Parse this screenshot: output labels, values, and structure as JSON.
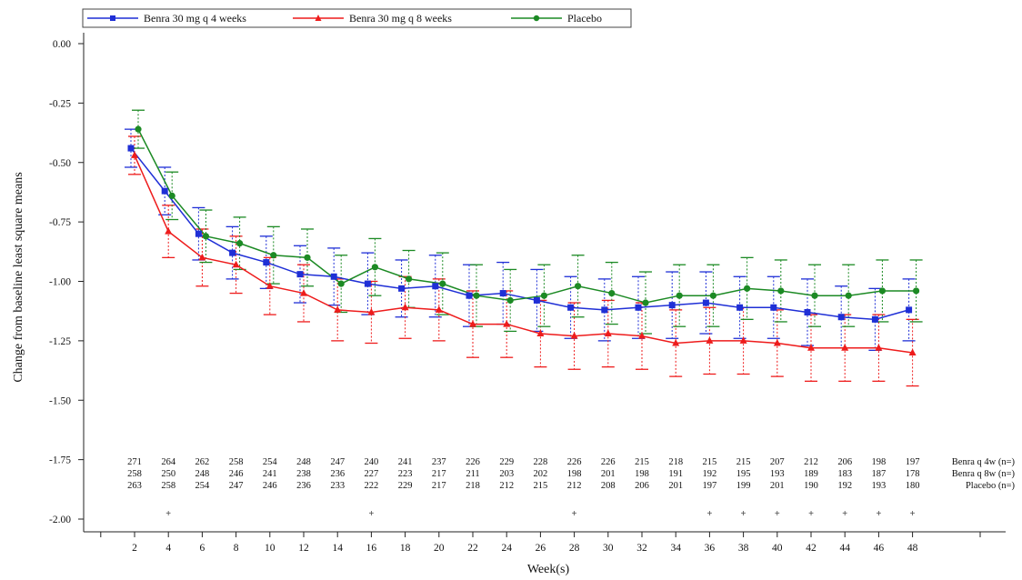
{
  "chart_data": {
    "type": "line",
    "xlabel": "Week(s)",
    "ylabel": "Change from baseline least square means",
    "ylim": [
      -2.0,
      0.0
    ],
    "yticks": [
      "0.00",
      "-0.25",
      "-0.50",
      "-0.75",
      "-1.00",
      "-1.25",
      "-1.50",
      "-1.75",
      "-2.00"
    ],
    "ytick_values": [
      0.0,
      -0.25,
      -0.5,
      -0.75,
      -1.0,
      -1.25,
      -1.5,
      -1.75,
      -2.0
    ],
    "x": [
      2,
      4,
      6,
      8,
      10,
      12,
      14,
      16,
      18,
      20,
      22,
      24,
      26,
      28,
      30,
      32,
      34,
      36,
      38,
      40,
      42,
      44,
      46,
      48
    ],
    "xtick_labels": [
      "2",
      "4",
      "6",
      "8",
      "10",
      "12",
      "14",
      "16",
      "18",
      "20",
      "22",
      "24",
      "26",
      "28",
      "30",
      "32",
      "34",
      "36",
      "38",
      "40",
      "42",
      "44",
      "46",
      "48"
    ],
    "legend_position": "top-left",
    "series": [
      {
        "name": "Benra 30 mg q 4 weeks",
        "color": "#1f2fd6",
        "marker": "square",
        "values": [
          -0.44,
          -0.62,
          -0.8,
          -0.88,
          -0.92,
          -0.97,
          -0.98,
          -1.01,
          -1.03,
          -1.02,
          -1.06,
          -1.05,
          -1.08,
          -1.11,
          -1.12,
          -1.11,
          -1.1,
          -1.09,
          -1.11,
          -1.11,
          -1.13,
          -1.15,
          -1.16,
          -1.12
        ],
        "upper": [
          -0.36,
          -0.52,
          -0.69,
          -0.77,
          -0.81,
          -0.85,
          -0.86,
          -0.88,
          -0.91,
          -0.89,
          -0.93,
          -0.92,
          -0.95,
          -0.98,
          -0.99,
          -0.98,
          -0.96,
          -0.96,
          -0.98,
          -0.98,
          -0.99,
          -1.02,
          -1.03,
          -0.99
        ],
        "lower": [
          -0.52,
          -0.72,
          -0.91,
          -0.99,
          -1.03,
          -1.09,
          -1.1,
          -1.14,
          -1.15,
          -1.15,
          -1.19,
          -1.18,
          -1.21,
          -1.24,
          -1.25,
          -1.24,
          -1.24,
          -1.22,
          -1.24,
          -1.24,
          -1.27,
          -1.28,
          -1.29,
          -1.25
        ]
      },
      {
        "name": "Benra 30 mg q 8 weeks",
        "color": "#ee1c1c",
        "marker": "triangle",
        "values": [
          -0.47,
          -0.79,
          -0.9,
          -0.93,
          -1.02,
          -1.05,
          -1.12,
          -1.13,
          -1.11,
          -1.12,
          -1.18,
          -1.18,
          -1.22,
          -1.23,
          -1.22,
          -1.23,
          -1.26,
          -1.25,
          -1.25,
          -1.26,
          -1.28,
          -1.28,
          -1.28,
          -1.3
        ],
        "upper": [
          -0.39,
          -0.68,
          -0.78,
          -0.81,
          -0.9,
          -0.93,
          -0.99,
          -1.0,
          -0.98,
          -0.99,
          -1.04,
          -1.04,
          -1.08,
          -1.09,
          -1.08,
          -1.09,
          -1.12,
          -1.11,
          -1.11,
          -1.12,
          -1.14,
          -1.14,
          -1.14,
          -1.16
        ],
        "lower": [
          -0.55,
          -0.9,
          -1.02,
          -1.05,
          -1.14,
          -1.17,
          -1.25,
          -1.26,
          -1.24,
          -1.25,
          -1.32,
          -1.32,
          -1.36,
          -1.37,
          -1.36,
          -1.37,
          -1.4,
          -1.39,
          -1.39,
          -1.4,
          -1.42,
          -1.42,
          -1.42,
          -1.44
        ]
      },
      {
        "name": "Placebo",
        "color": "#1c8a24",
        "marker": "circle",
        "values": [
          -0.36,
          -0.64,
          -0.81,
          -0.84,
          -0.89,
          -0.9,
          -1.01,
          -0.94,
          -0.99,
          -1.01,
          -1.06,
          -1.08,
          -1.06,
          -1.02,
          -1.05,
          -1.09,
          -1.06,
          -1.06,
          -1.03,
          -1.04,
          -1.06,
          -1.06,
          -1.04,
          -1.04
        ],
        "upper": [
          -0.28,
          -0.54,
          -0.7,
          -0.73,
          -0.77,
          -0.78,
          -0.89,
          -0.82,
          -0.87,
          -0.88,
          -0.93,
          -0.95,
          -0.93,
          -0.89,
          -0.92,
          -0.96,
          -0.93,
          -0.93,
          -0.9,
          -0.91,
          -0.93,
          -0.93,
          -0.91,
          -0.91
        ],
        "lower": [
          -0.44,
          -0.74,
          -0.92,
          -0.95,
          -1.01,
          -1.02,
          -1.13,
          -1.06,
          -1.11,
          -1.14,
          -1.19,
          -1.21,
          -1.19,
          -1.15,
          -1.18,
          -1.22,
          -1.19,
          -1.19,
          -1.16,
          -1.17,
          -1.19,
          -1.19,
          -1.17,
          -1.17
        ]
      }
    ],
    "n_at_risk": {
      "rows": [
        {
          "label": "Benra q 4w (n=)",
          "values": [
            "271",
            "264",
            "262",
            "258",
            "254",
            "248",
            "247",
            "240",
            "241",
            "237",
            "226",
            "229",
            "228",
            "226",
            "226",
            "215",
            "218",
            "215",
            "215",
            "207",
            "212",
            "206",
            "198",
            "197"
          ]
        },
        {
          "label": "Benra q 8w (n=)",
          "values": [
            "258",
            "250",
            "248",
            "246",
            "241",
            "238",
            "236",
            "227",
            "223",
            "217",
            "211",
            "203",
            "202",
            "198",
            "201",
            "198",
            "191",
            "192",
            "195",
            "193",
            "189",
            "183",
            "187",
            "178"
          ]
        },
        {
          "label": "Placebo (n=)",
          "values": [
            "263",
            "258",
            "254",
            "247",
            "246",
            "236",
            "233",
            "222",
            "229",
            "217",
            "218",
            "212",
            "215",
            "212",
            "208",
            "206",
            "201",
            "197",
            "199",
            "201",
            "190",
            "192",
            "193",
            "180"
          ]
        }
      ]
    },
    "significance_markers": {
      "symbol": "+",
      "weeks": [
        4,
        16,
        28,
        36,
        38,
        40,
        42,
        44,
        46,
        48
      ]
    }
  }
}
